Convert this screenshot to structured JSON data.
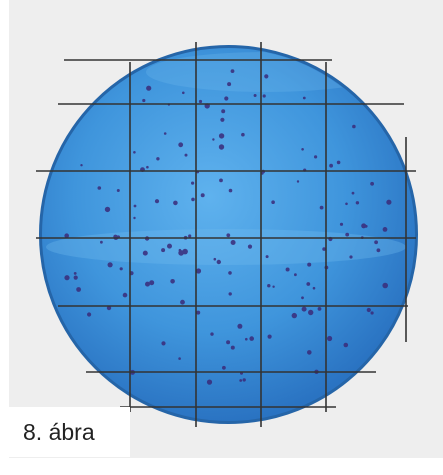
{
  "figure": {
    "caption": "8. ábra"
  },
  "colors": {
    "background_panel": "#eeeeee",
    "agar_light": "#4aa3e6",
    "agar_dark": "#1f6cc4",
    "rim": "#2a6fb8",
    "grid_lines": "#333333",
    "colony": "#3a2b7a"
  }
}
